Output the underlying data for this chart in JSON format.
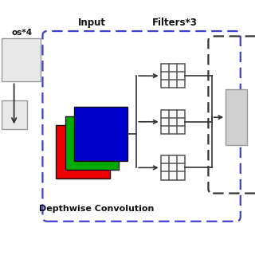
{
  "title_input": "Input",
  "title_filters": "Filters*3",
  "title_depthwise": "Depthwise Convolution",
  "text_left_top": "os*4",
  "bg_color": "#ffffff",
  "dashed_blue": "#4040cc",
  "dashed_black": "#333333",
  "gray_box_light": "#e0e0e0",
  "gray_box_edge": "#999999",
  "red_color": "#ee0000",
  "green_color": "#00aa00",
  "blue_color": "#0000cc",
  "grid_color": "#555555",
  "arrow_color": "#333333",
  "output_box_color": "#cccccc",
  "output_box_edge": "#888888"
}
